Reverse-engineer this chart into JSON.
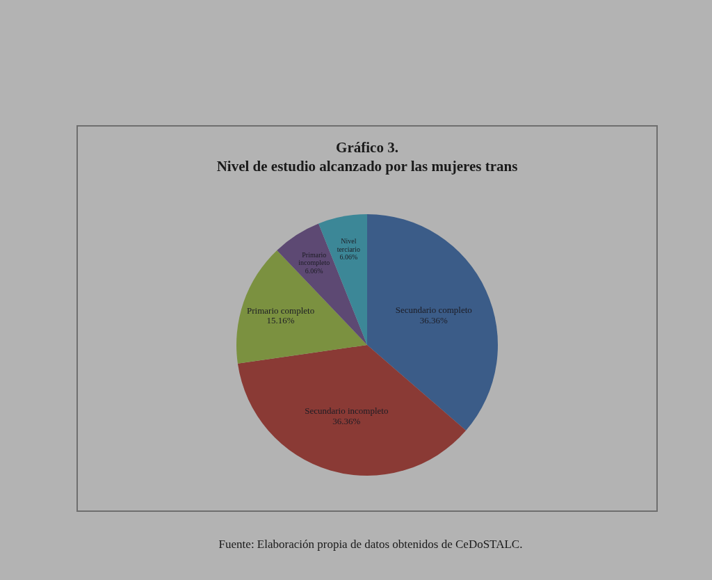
{
  "chart_data": {
    "type": "pie",
    "title": "Gráfico 3.",
    "subtitle": "Nivel de estudio alcanzado por las mujeres trans",
    "categories": [
      "Secundario completo",
      "Secundario incompleto",
      "Primario completo",
      "Primario incompleto",
      "Nivel terciario"
    ],
    "values": [
      36.36,
      36.36,
      15.16,
      6.06,
      6.06
    ],
    "colors": [
      "#3b5c88",
      "#8a3a35",
      "#7b9140",
      "#5d4973",
      "#3c8797"
    ],
    "value_labels": [
      "36.36%",
      "36.36%",
      "15.16%",
      "6.06%",
      "6.06%"
    ],
    "annotations": [
      "Fuente: Elaboración propia de datos obtenidos de CeDoSTALC."
    ]
  }
}
